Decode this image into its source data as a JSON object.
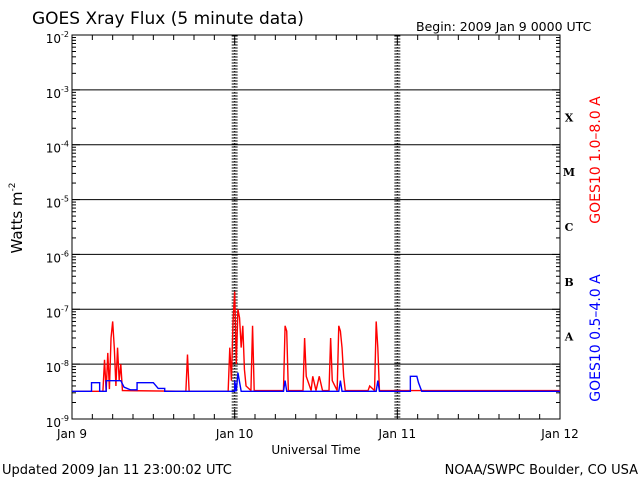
{
  "chart_data": {
    "type": "line",
    "title": "GOES Xray Flux (5 minute data)",
    "begin_label": "Begin:  2009 Jan 9 0000 UTC",
    "xlabel": "Universal Time",
    "ylabel": "Watts m",
    "ylabel_exp": "-2",
    "yscale": "log",
    "ylim_exp": [
      -9,
      -2
    ],
    "y_ticks": [
      {
        "exp": "-9"
      },
      {
        "exp": "-8"
      },
      {
        "exp": "-7"
      },
      {
        "exp": "-6"
      },
      {
        "exp": "-5"
      },
      {
        "exp": "-4"
      },
      {
        "exp": "-3"
      },
      {
        "exp": "-2"
      }
    ],
    "x_tick_labels": [
      "Jan 9",
      "Jan 10",
      "Jan 11",
      "Jan 12"
    ],
    "x_range_days": [
      0,
      3
    ],
    "flare_classes": [
      "X",
      "M",
      "C",
      "B",
      "A"
    ],
    "footer_left": "Updated 2009 Jan 11 23:00:02 UTC",
    "footer_right": "NOAA/SWPC Boulder, CO USA",
    "colors": {
      "long": "#ff0000",
      "short": "#0000ff",
      "grid": "#000000"
    },
    "series": [
      {
        "name": "GOES10 1.0–8.0 A",
        "color": "#ff0000",
        "points": [
          [
            0.0,
            3.2e-09
          ],
          [
            0.19,
            3.2e-09
          ],
          [
            0.2,
            1.2e-08
          ],
          [
            0.21,
            3.2e-09
          ],
          [
            0.22,
            1.6e-08
          ],
          [
            0.23,
            3.5e-09
          ],
          [
            0.24,
            3e-08
          ],
          [
            0.25,
            6e-08
          ],
          [
            0.26,
            2e-08
          ],
          [
            0.27,
            4e-09
          ],
          [
            0.28,
            2e-08
          ],
          [
            0.29,
            5e-09
          ],
          [
            0.3,
            1e-08
          ],
          [
            0.31,
            3.3e-09
          ],
          [
            0.7,
            3.2e-09
          ],
          [
            0.71,
            1.5e-08
          ],
          [
            0.72,
            3.2e-09
          ],
          [
            0.96,
            3.2e-09
          ],
          [
            0.97,
            2e-08
          ],
          [
            0.98,
            5e-09
          ],
          [
            0.99,
            6e-08
          ],
          [
            1.0,
            2.1e-07
          ],
          [
            1.01,
            1e-08
          ],
          [
            1.02,
            1e-07
          ],
          [
            1.03,
            7e-08
          ],
          [
            1.04,
            2e-08
          ],
          [
            1.05,
            5e-08
          ],
          [
            1.06,
            8e-09
          ],
          [
            1.07,
            4e-09
          ],
          [
            1.1,
            3.3e-09
          ],
          [
            1.11,
            5e-08
          ],
          [
            1.12,
            3.3e-09
          ],
          [
            1.3,
            3.3e-09
          ],
          [
            1.31,
            5e-08
          ],
          [
            1.32,
            4e-08
          ],
          [
            1.33,
            3.3e-09
          ],
          [
            1.42,
            3.3e-09
          ],
          [
            1.43,
            3e-08
          ],
          [
            1.44,
            6e-09
          ],
          [
            1.47,
            3.3e-09
          ],
          [
            1.48,
            6e-09
          ],
          [
            1.5,
            3.3e-09
          ],
          [
            1.52,
            6e-09
          ],
          [
            1.54,
            3.3e-09
          ],
          [
            1.58,
            3.3e-09
          ],
          [
            1.59,
            3e-08
          ],
          [
            1.6,
            5e-09
          ],
          [
            1.63,
            3.3e-09
          ],
          [
            1.64,
            5e-08
          ],
          [
            1.65,
            4e-08
          ],
          [
            1.66,
            2e-08
          ],
          [
            1.67,
            6e-09
          ],
          [
            1.68,
            3.3e-09
          ],
          [
            1.82,
            3.3e-09
          ],
          [
            1.83,
            4e-09
          ],
          [
            1.86,
            3.3e-09
          ],
          [
            1.87,
            6e-08
          ],
          [
            1.88,
            2e-08
          ],
          [
            1.89,
            3.3e-09
          ],
          [
            3.0,
            3.3e-09
          ]
        ]
      },
      {
        "name": "GOES10 0.5–4.0 A",
        "color": "#0000ff",
        "points": [
          [
            0.0,
            3.2e-09
          ],
          [
            0.12,
            3.2e-09
          ],
          [
            0.12,
            4.6e-09
          ],
          [
            0.17,
            4.6e-09
          ],
          [
            0.17,
            3.2e-09
          ],
          [
            0.21,
            3.2e-09
          ],
          [
            0.21,
            5e-09
          ],
          [
            0.3,
            5e-09
          ],
          [
            0.32,
            3.8e-09
          ],
          [
            0.36,
            3.4e-09
          ],
          [
            0.4,
            3.4e-09
          ],
          [
            0.4,
            4.6e-09
          ],
          [
            0.5,
            4.6e-09
          ],
          [
            0.53,
            3.6e-09
          ],
          [
            0.57,
            3.6e-09
          ],
          [
            0.57,
            3.2e-09
          ],
          [
            1.0,
            3.2e-09
          ],
          [
            1.0,
            5e-09
          ],
          [
            1.01,
            3.2e-09
          ],
          [
            1.02,
            7e-09
          ],
          [
            1.04,
            3.2e-09
          ],
          [
            1.3,
            3.2e-09
          ],
          [
            1.31,
            5e-09
          ],
          [
            1.32,
            3.2e-09
          ],
          [
            1.64,
            3.2e-09
          ],
          [
            1.65,
            5e-09
          ],
          [
            1.66,
            3.2e-09
          ],
          [
            1.87,
            3.2e-09
          ],
          [
            1.88,
            5e-09
          ],
          [
            1.89,
            3.2e-09
          ],
          [
            2.08,
            3.2e-09
          ],
          [
            2.08,
            6e-09
          ],
          [
            2.12,
            6e-09
          ],
          [
            2.13,
            4.6e-09
          ],
          [
            2.15,
            3.2e-09
          ],
          [
            3.0,
            3.2e-09
          ]
        ]
      }
    ]
  }
}
